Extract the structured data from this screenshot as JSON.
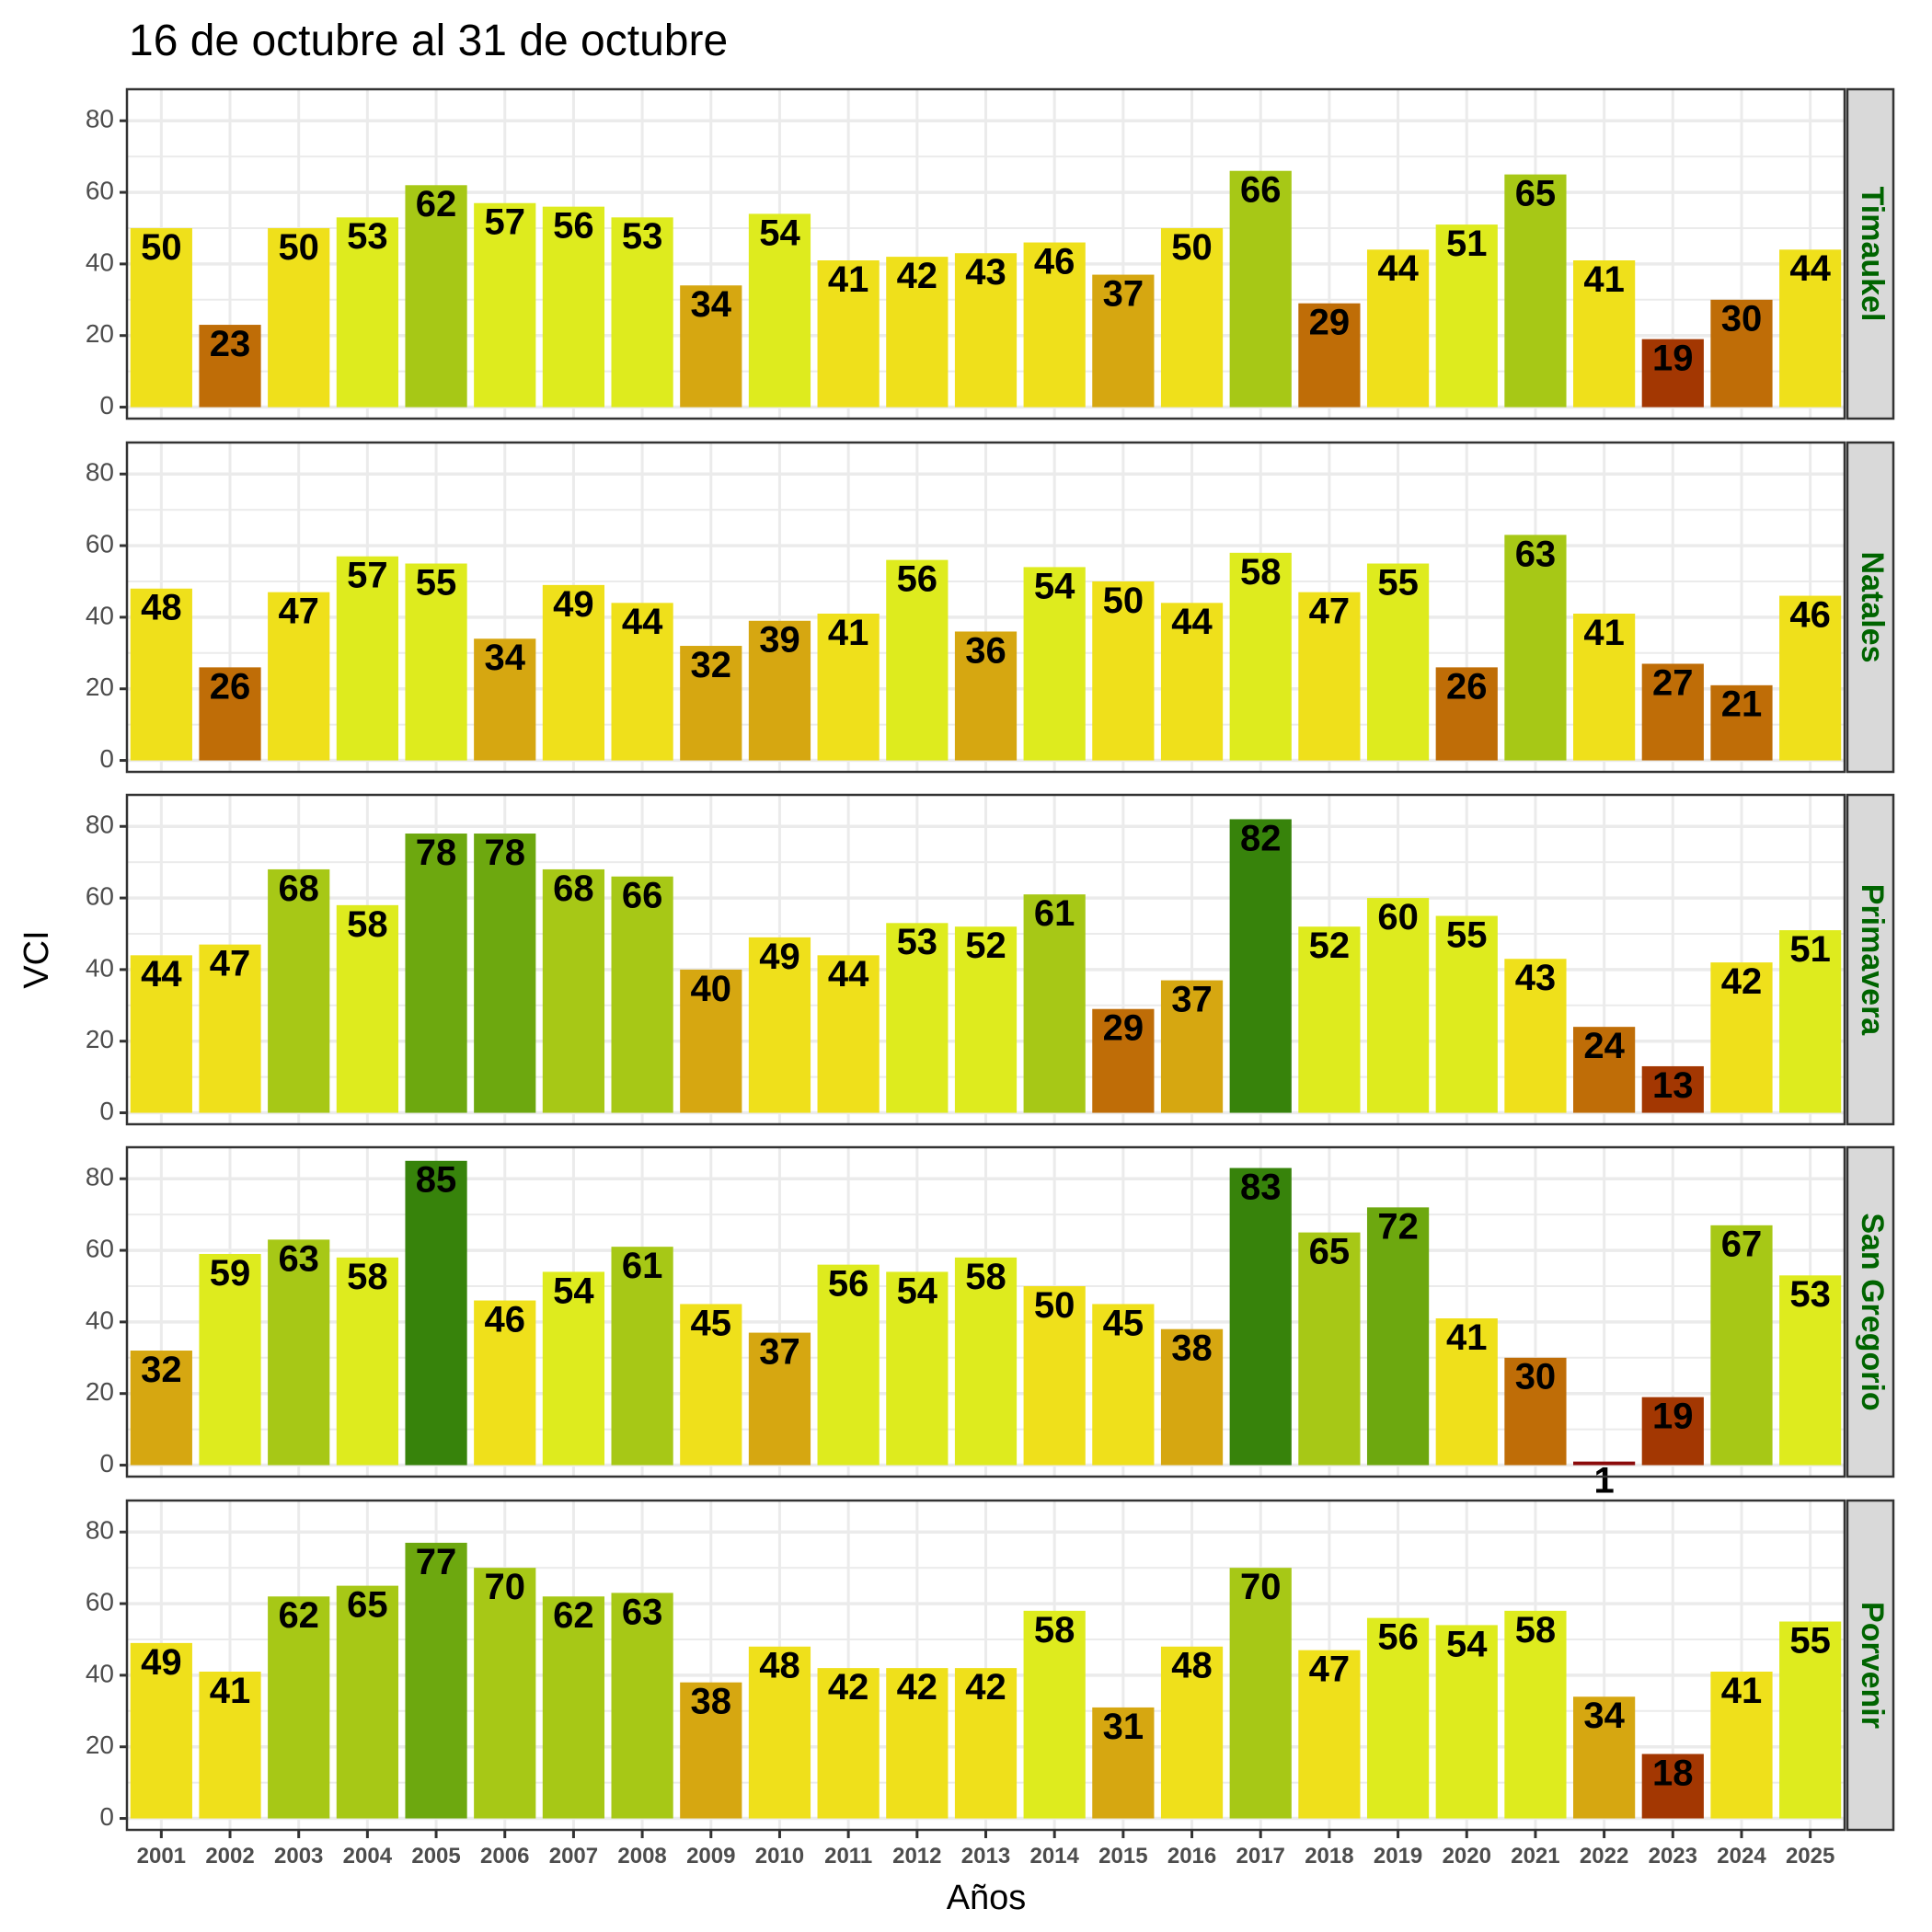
{
  "chart_data": {
    "type": "bar",
    "title": "16 de octubre al 31 de octubre",
    "xlabel": "Años",
    "ylabel": "VCI",
    "ylim": [
      0,
      88
    ],
    "yticks": [
      0,
      20,
      40,
      60,
      80
    ],
    "grid": true,
    "facet_layout": "rows",
    "categories": [
      "2001",
      "2002",
      "2003",
      "2004",
      "2005",
      "2006",
      "2007",
      "2008",
      "2009",
      "2010",
      "2011",
      "2012",
      "2013",
      "2014",
      "2015",
      "2016",
      "2017",
      "2018",
      "2019",
      "2020",
      "2021",
      "2022",
      "2023",
      "2024",
      "2025"
    ],
    "color_scale": [
      {
        "min": 0,
        "max": 10,
        "color": "#8B0A0A"
      },
      {
        "min": 11,
        "max": 20,
        "color": "#A33702"
      },
      {
        "min": 21,
        "max": 30,
        "color": "#BF6D07"
      },
      {
        "min": 31,
        "max": 40,
        "color": "#D6A711"
      },
      {
        "min": 41,
        "max": 50,
        "color": "#EFE01B"
      },
      {
        "min": 51,
        "max": 60,
        "color": "#DEEB1E"
      },
      {
        "min": 61,
        "max": 70,
        "color": "#A7C816"
      },
      {
        "min": 71,
        "max": 80,
        "color": "#6DA80F"
      },
      {
        "min": 81,
        "max": 100,
        "color": "#37830B"
      }
    ],
    "series": [
      {
        "name": "Timaukel",
        "values": [
          50,
          23,
          50,
          53,
          62,
          57,
          56,
          53,
          34,
          54,
          41,
          42,
          43,
          46,
          37,
          50,
          66,
          29,
          44,
          51,
          65,
          41,
          19,
          30,
          44
        ]
      },
      {
        "name": "Natales",
        "values": [
          48,
          26,
          47,
          57,
          55,
          34,
          49,
          44,
          32,
          39,
          41,
          56,
          36,
          54,
          50,
          44,
          58,
          47,
          55,
          26,
          63,
          41,
          27,
          21,
          46
        ]
      },
      {
        "name": "Primavera",
        "values": [
          44,
          47,
          68,
          58,
          78,
          78,
          68,
          66,
          40,
          49,
          44,
          53,
          52,
          61,
          29,
          37,
          82,
          52,
          60,
          55,
          43,
          24,
          13,
          42,
          51
        ]
      },
      {
        "name": "San Gregorio",
        "values": [
          32,
          59,
          63,
          58,
          85,
          46,
          54,
          61,
          45,
          37,
          56,
          54,
          58,
          50,
          45,
          38,
          83,
          65,
          72,
          41,
          30,
          1,
          19,
          67,
          53
        ]
      },
      {
        "name": "Porvenir",
        "values": [
          49,
          41,
          62,
          65,
          77,
          70,
          62,
          63,
          38,
          48,
          42,
          42,
          42,
          58,
          31,
          48,
          70,
          47,
          56,
          54,
          58,
          34,
          18,
          41,
          55
        ]
      }
    ]
  },
  "colors": {
    "strip_bg": "#D9D9D9",
    "strip_text": "#006400",
    "grid": "#EBEBEB",
    "panel_border": "#333333"
  }
}
